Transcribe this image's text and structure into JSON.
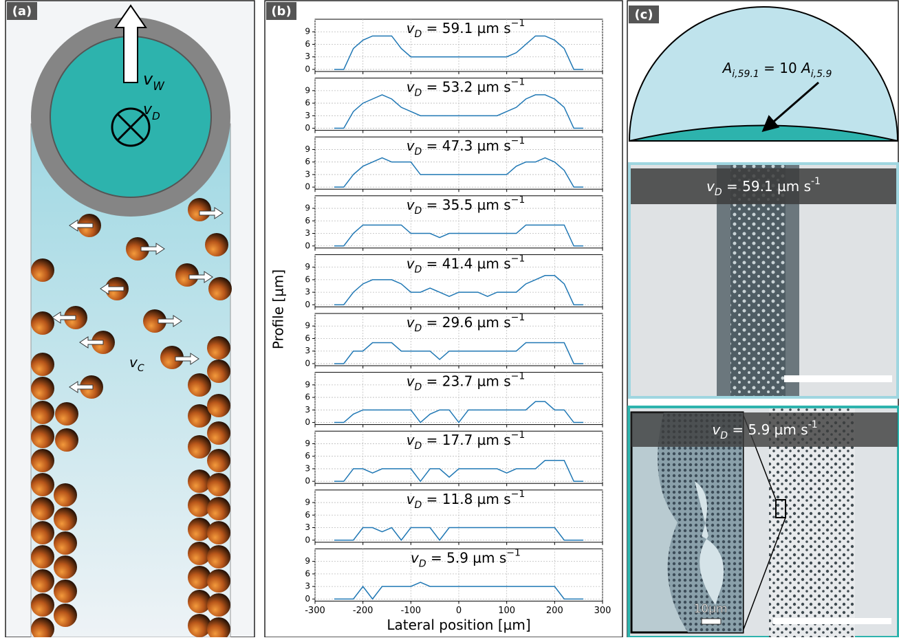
{
  "panel_a": {
    "label": "(a)",
    "v_w": [
      "v",
      "W"
    ],
    "v_d": [
      "v",
      "D"
    ],
    "v_c": [
      "v",
      "C"
    ]
  },
  "panel_b": {
    "label": "(b)",
    "ylabel": "Profile [µm]"
  },
  "chart_data": [
    {
      "type": "line",
      "title": [
        "v",
        "D",
        " = 59.1 µm s",
        "−1"
      ],
      "x": [
        -260,
        -240,
        -220,
        -200,
        -180,
        -160,
        -140,
        -120,
        -100,
        -80,
        -60,
        -40,
        -20,
        0,
        20,
        40,
        60,
        80,
        100,
        120,
        140,
        160,
        180,
        200,
        220,
        240,
        260
      ],
      "series": [
        {
          "color": "#1f77b4",
          "values": [
            0,
            0,
            5,
            7,
            8,
            8,
            8,
            5,
            3,
            3,
            3,
            3,
            3,
            3,
            3,
            3,
            3,
            3,
            3,
            4,
            6,
            8,
            8,
            7,
            5,
            0,
            0
          ]
        }
      ],
      "xlim": [
        -300,
        300
      ],
      "ylim": [
        -0.5,
        12
      ],
      "xticks": [
        -300,
        -200,
        -100,
        0,
        100,
        200,
        300
      ],
      "yticks": [
        0,
        3,
        6,
        9
      ],
      "grid": true
    },
    {
      "type": "line",
      "title": [
        "v",
        "D",
        " = 53.2 µm s",
        "−1"
      ],
      "x": [
        -260,
        -240,
        -220,
        -200,
        -180,
        -160,
        -140,
        -120,
        -100,
        -80,
        -60,
        -40,
        -20,
        0,
        20,
        40,
        60,
        80,
        100,
        120,
        140,
        160,
        180,
        200,
        220,
        240,
        260
      ],
      "series": [
        {
          "color": "#1f77b4",
          "values": [
            0,
            0,
            4,
            6,
            7,
            8,
            7,
            5,
            4,
            3,
            3,
            3,
            3,
            3,
            3,
            3,
            3,
            3,
            4,
            5,
            7,
            8,
            8,
            7,
            5,
            0,
            0
          ]
        }
      ],
      "xlim": [
        -300,
        300
      ],
      "ylim": [
        -0.5,
        12
      ],
      "xticks": [
        -300,
        -200,
        -100,
        0,
        100,
        200,
        300
      ],
      "yticks": [
        0,
        3,
        6,
        9
      ],
      "grid": true
    },
    {
      "type": "line",
      "title": [
        "v",
        "D",
        " = 47.3 µm s",
        "−1"
      ],
      "x": [
        -260,
        -240,
        -220,
        -200,
        -180,
        -160,
        -140,
        -120,
        -100,
        -80,
        -60,
        -40,
        -20,
        0,
        20,
        40,
        60,
        80,
        100,
        120,
        140,
        160,
        180,
        200,
        220,
        240,
        260
      ],
      "series": [
        {
          "color": "#1f77b4",
          "values": [
            0,
            0,
            3,
            5,
            6,
            7,
            6,
            6,
            6,
            3,
            3,
            3,
            3,
            3,
            3,
            3,
            3,
            3,
            3,
            5,
            6,
            6,
            7,
            6,
            4,
            0,
            0
          ]
        }
      ],
      "xlim": [
        -300,
        300
      ],
      "ylim": [
        -0.5,
        12
      ],
      "xticks": [
        -300,
        -200,
        -100,
        0,
        100,
        200,
        300
      ],
      "yticks": [
        0,
        3,
        6,
        9
      ],
      "grid": true
    },
    {
      "type": "line",
      "title": [
        "v",
        "D",
        " = 35.5 µm s",
        "−1"
      ],
      "x": [
        -260,
        -240,
        -220,
        -200,
        -180,
        -160,
        -140,
        -120,
        -100,
        -80,
        -60,
        -40,
        -20,
        0,
        20,
        40,
        60,
        80,
        100,
        120,
        140,
        160,
        180,
        200,
        220,
        240,
        260
      ],
      "series": [
        {
          "color": "#1f77b4",
          "values": [
            0,
            0,
            3,
            5,
            5,
            5,
            5,
            5,
            3,
            3,
            3,
            2,
            3,
            3,
            3,
            3,
            3,
            3,
            3,
            3,
            5,
            5,
            5,
            5,
            5,
            0,
            0
          ]
        }
      ],
      "xlim": [
        -300,
        300
      ],
      "ylim": [
        -0.5,
        12
      ],
      "xticks": [
        -300,
        -200,
        -100,
        0,
        100,
        200,
        300
      ],
      "yticks": [
        0,
        3,
        6,
        9
      ],
      "grid": true
    },
    {
      "type": "line",
      "title": [
        "v",
        "D",
        " = 41.4 µm s",
        "−1"
      ],
      "x": [
        -260,
        -240,
        -220,
        -200,
        -180,
        -160,
        -140,
        -120,
        -100,
        -80,
        -60,
        -40,
        -20,
        0,
        20,
        40,
        60,
        80,
        100,
        120,
        140,
        160,
        180,
        200,
        220,
        240,
        260
      ],
      "series": [
        {
          "color": "#1f77b4",
          "values": [
            0,
            0,
            3,
            5,
            6,
            6,
            6,
            5,
            3,
            3,
            4,
            3,
            2,
            3,
            3,
            3,
            2,
            3,
            3,
            3,
            5,
            6,
            7,
            7,
            5,
            0,
            0
          ]
        }
      ],
      "xlim": [
        -300,
        300
      ],
      "ylim": [
        -0.5,
        12
      ],
      "xticks": [
        -300,
        -200,
        -100,
        0,
        100,
        200,
        300
      ],
      "yticks": [
        0,
        3,
        6,
        9
      ],
      "grid": true
    },
    {
      "type": "line",
      "title": [
        "v",
        "D",
        " = 29.6 µm s",
        "−1"
      ],
      "x": [
        -260,
        -240,
        -220,
        -200,
        -180,
        -160,
        -140,
        -120,
        -100,
        -80,
        -60,
        -40,
        -20,
        0,
        20,
        40,
        60,
        80,
        100,
        120,
        140,
        160,
        180,
        200,
        220,
        240,
        260
      ],
      "series": [
        {
          "color": "#1f77b4",
          "values": [
            0,
            0,
            3,
            3,
            5,
            5,
            5,
            3,
            3,
            3,
            3,
            1,
            3,
            3,
            3,
            3,
            3,
            3,
            3,
            3,
            5,
            5,
            5,
            5,
            5,
            0,
            0
          ]
        }
      ],
      "xlim": [
        -300,
        300
      ],
      "ylim": [
        -0.5,
        12
      ],
      "xticks": [
        -300,
        -200,
        -100,
        0,
        100,
        200,
        300
      ],
      "yticks": [
        0,
        3,
        6,
        9
      ],
      "grid": true
    },
    {
      "type": "line",
      "title": [
        "v",
        "D",
        " = 23.7 µm s",
        "−1"
      ],
      "x": [
        -260,
        -240,
        -220,
        -200,
        -180,
        -160,
        -140,
        -120,
        -100,
        -80,
        -60,
        -40,
        -20,
        0,
        20,
        40,
        60,
        80,
        100,
        120,
        140,
        160,
        180,
        200,
        220,
        240,
        260
      ],
      "series": [
        {
          "color": "#1f77b4",
          "values": [
            0,
            0,
            2,
            3,
            3,
            3,
            3,
            3,
            3,
            0,
            2,
            3,
            3,
            0,
            3,
            3,
            3,
            3,
            3,
            3,
            3,
            5,
            5,
            3,
            3,
            0,
            0
          ]
        }
      ],
      "xlim": [
        -300,
        300
      ],
      "ylim": [
        -0.5,
        12
      ],
      "xticks": [
        -300,
        -200,
        -100,
        0,
        100,
        200,
        300
      ],
      "yticks": [
        0,
        3,
        6,
        9
      ],
      "grid": true
    },
    {
      "type": "line",
      "title": [
        "v",
        "D",
        " = 17.7 µm s",
        "−1"
      ],
      "x": [
        -260,
        -240,
        -220,
        -200,
        -180,
        -160,
        -140,
        -120,
        -100,
        -80,
        -60,
        -40,
        -20,
        0,
        20,
        40,
        60,
        80,
        100,
        120,
        140,
        160,
        180,
        200,
        220,
        240,
        260
      ],
      "series": [
        {
          "color": "#1f77b4",
          "values": [
            0,
            0,
            3,
            3,
            2,
            3,
            3,
            3,
            3,
            0,
            3,
            3,
            1,
            3,
            3,
            3,
            3,
            3,
            2,
            3,
            3,
            3,
            5,
            5,
            5,
            0,
            0
          ]
        }
      ],
      "xlim": [
        -300,
        300
      ],
      "ylim": [
        -0.5,
        12
      ],
      "xticks": [
        -300,
        -200,
        -100,
        0,
        100,
        200,
        300
      ],
      "yticks": [
        0,
        3,
        6,
        9
      ],
      "grid": true
    },
    {
      "type": "line",
      "title": [
        "v",
        "D",
        " = 11.8 µm s",
        "−1"
      ],
      "x": [
        -260,
        -240,
        -220,
        -200,
        -180,
        -160,
        -140,
        -120,
        -100,
        -80,
        -60,
        -40,
        -20,
        0,
        20,
        40,
        60,
        80,
        100,
        120,
        140,
        160,
        180,
        200,
        220,
        240,
        260
      ],
      "series": [
        {
          "color": "#1f77b4",
          "values": [
            0,
            0,
            0,
            3,
            3,
            2,
            3,
            0,
            3,
            3,
            3,
            0,
            3,
            3,
            3,
            3,
            3,
            3,
            3,
            3,
            3,
            3,
            3,
            3,
            0,
            0,
            0
          ]
        }
      ],
      "xlim": [
        -300,
        300
      ],
      "ylim": [
        -0.5,
        12
      ],
      "xticks": [
        -300,
        -200,
        -100,
        0,
        100,
        200,
        300
      ],
      "yticks": [
        0,
        3,
        6,
        9
      ],
      "grid": true
    },
    {
      "type": "line",
      "title": [
        "v",
        "D",
        " = 5.9 µm s",
        "−1"
      ],
      "x": [
        -260,
        -240,
        -220,
        -200,
        -180,
        -160,
        -140,
        -120,
        -100,
        -80,
        -60,
        -40,
        -20,
        0,
        20,
        40,
        60,
        80,
        100,
        120,
        140,
        160,
        180,
        200,
        220,
        240,
        260
      ],
      "series": [
        {
          "color": "#1f77b4",
          "values": [
            0,
            0,
            0,
            3,
            0,
            3,
            3,
            3,
            3,
            4,
            3,
            3,
            3,
            3,
            3,
            3,
            3,
            3,
            3,
            3,
            3,
            3,
            3,
            3,
            0,
            0,
            0
          ]
        }
      ],
      "xlim": [
        -300,
        300
      ],
      "ylim": [
        -0.5,
        12
      ],
      "xticks": [
        -300,
        -200,
        -100,
        0,
        100,
        200,
        300
      ],
      "yticks": [
        0,
        3,
        6,
        9
      ],
      "grid": true,
      "xlabel": "Lateral position [µm]"
    }
  ],
  "panel_c": {
    "label": "(c)",
    "area_relation": [
      "A",
      "i,59.1",
      " = 10 ",
      "A",
      "i,5.9"
    ],
    "image_top_label": [
      "v",
      "D",
      " = 59.1 µm s",
      "-1"
    ],
    "image_bottom_label": [
      "v",
      "D",
      " = 5.9 µm s",
      "-1"
    ],
    "scale_label": "10µm"
  }
}
